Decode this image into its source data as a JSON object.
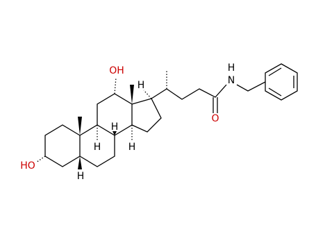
{
  "atoms": [
    {
      "label": "OH"
    },
    {
      "label": "H"
    },
    {
      "label": "H"
    },
    {
      "label": "N"
    },
    {
      "label": "O"
    },
    {
      "label": "H"
    },
    {
      "label": "H"
    },
    {
      "label": "H"
    },
    {
      "label": "HO"
    },
    {
      "label": "H"
    }
  ]
}
